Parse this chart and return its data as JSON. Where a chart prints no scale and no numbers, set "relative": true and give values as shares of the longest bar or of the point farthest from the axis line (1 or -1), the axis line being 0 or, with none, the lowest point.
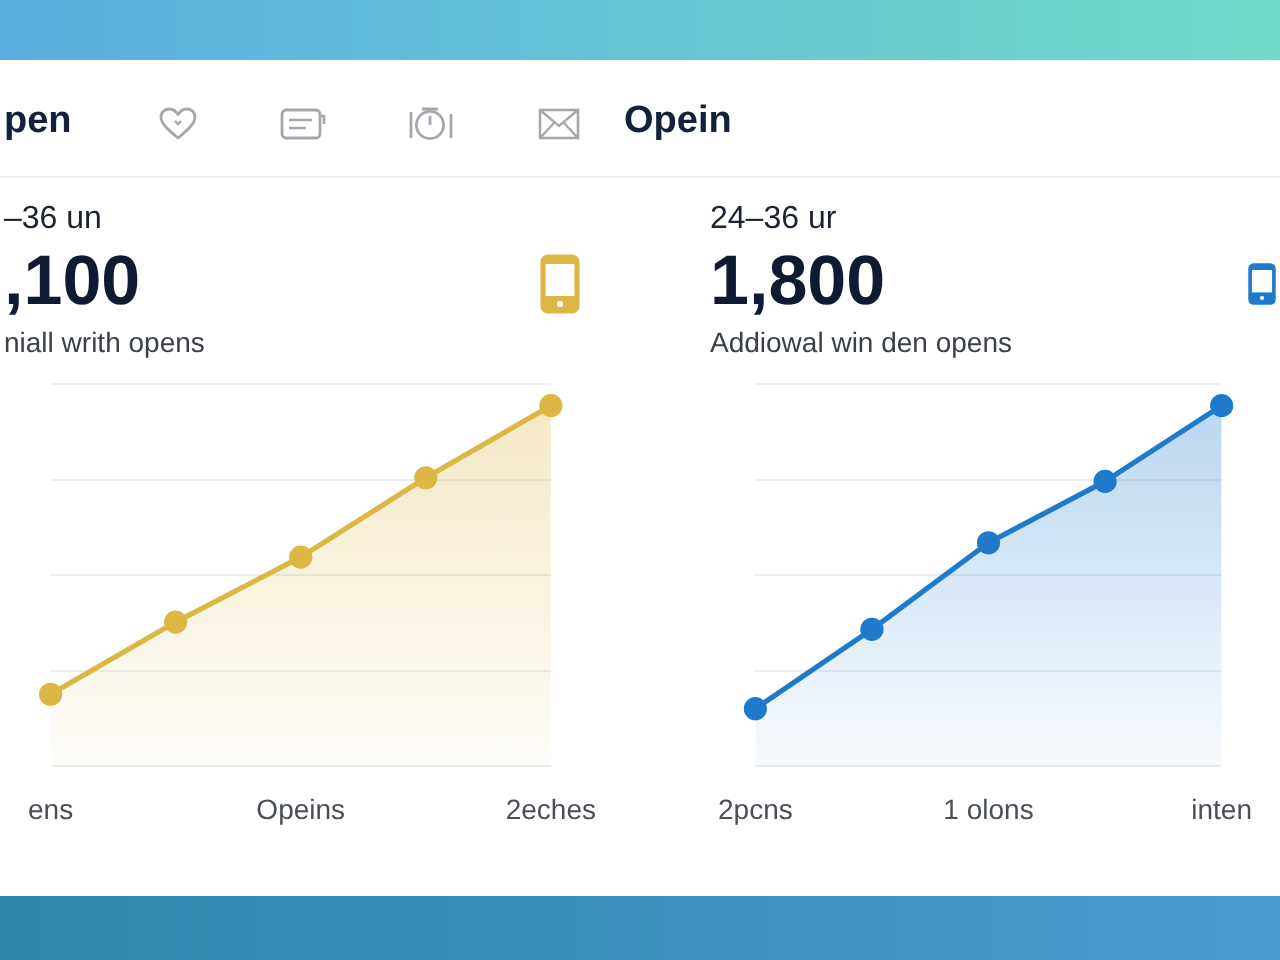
{
  "chart_data": [
    {
      "type": "area",
      "title": "pen",
      "annotations": [
        "–36 un",
        ",100",
        "niall writh opens"
      ],
      "categories": [
        "ens",
        null,
        "Opeins",
        null,
        "2eches"
      ],
      "series": [
        {
          "color": "#dcb744",
          "values": [
            0.2,
            0.4,
            0.58,
            0.8,
            1
          ]
        }
      ],
      "relative": true,
      "grid": "y",
      "legend": false,
      "tick_labels": "x",
      "marker": "circle",
      "line_style": "solid"
    },
    {
      "type": "area",
      "title": "Opein",
      "annotations": [
        "24–36 ur",
        "1,800",
        "Addiowal win den opens"
      ],
      "categories": [
        "2pcns",
        null,
        "1 olons",
        null,
        "inten"
      ],
      "series": [
        {
          "color": "#1f7acb",
          "values": [
            0.16,
            0.38,
            0.62,
            0.79,
            1
          ]
        }
      ],
      "relative": true,
      "grid": "y",
      "legend": false,
      "tick_labels": "x",
      "marker": "circle",
      "line_style": "solid"
    }
  ]
}
